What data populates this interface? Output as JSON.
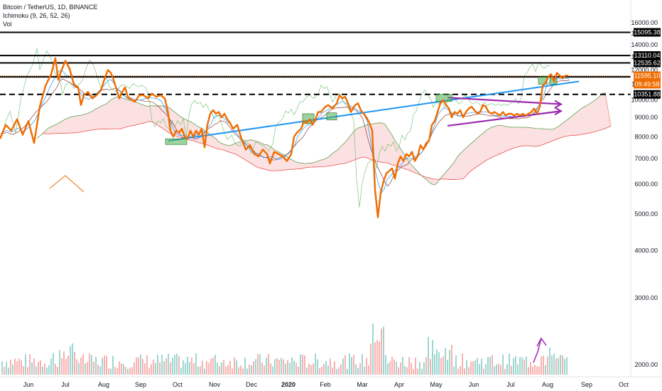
{
  "legend": {
    "symbol": "Bitcoin / TetherUS, 1D, BINANCE",
    "indicator1": "Ichimoku (9, 26, 52, 26)",
    "indicator2": "Vol"
  },
  "colors": {
    "price": "#ef6c00",
    "trendline": "#2196f3",
    "channel": "#9c27b0",
    "arrow": "#9c27b0",
    "cloud_red": "#f8c8c8",
    "cloud_green": "#c8e6c9",
    "lagging": "#66bb6a",
    "box": "#4caf50",
    "vol_up": "#26a69a",
    "vol_down": "#ef5350"
  },
  "chart_data": {
    "type": "line",
    "title": "Bitcoin / TetherUS, 1D, BINANCE",
    "x_ticks": [
      "Jun",
      "Jul",
      "Aug",
      "Sep",
      "Oct",
      "Nov",
      "Dec",
      "2020",
      "Feb",
      "Mar",
      "Apr",
      "May",
      "Jun",
      "Jul",
      "Aug",
      "Sep",
      "Oct"
    ],
    "y_ticks": [
      2000,
      3000,
      4000,
      5000,
      6000,
      7000,
      8000,
      9000,
      10000,
      11000,
      12000,
      13000,
      14000,
      15000,
      16000
    ],
    "y_scale": "log",
    "horizontal_levels": [
      {
        "value": 15095.38,
        "label": "15095.38",
        "style": "solid"
      },
      {
        "value": 13110.04,
        "label": "13110.04",
        "style": "solid"
      },
      {
        "value": 12535.62,
        "label": "12535.62",
        "style": "solid"
      },
      {
        "value": 11510.92,
        "label": "11510.92",
        "style": "solid"
      },
      {
        "value": 10351.88,
        "label": "10351.88",
        "style": "dashed"
      }
    ],
    "last_price": {
      "value": 11595.1,
      "label": "11595.10",
      "countdown": "09:49:58"
    },
    "series": [
      {
        "values": [
          [
            0,
            7900
          ],
          [
            8,
            8600
          ],
          [
            16,
            8300
          ],
          [
            24,
            8900
          ],
          [
            32,
            8100
          ],
          [
            40,
            8800
          ],
          [
            48,
            7700
          ],
          [
            56,
            9600
          ],
          [
            64,
            10900
          ],
          [
            72,
            11700
          ],
          [
            78,
            12900
          ],
          [
            82,
            11300
          ],
          [
            86,
            11900
          ],
          [
            92,
            12700
          ],
          [
            98,
            12100
          ],
          [
            104,
            11000
          ],
          [
            110,
            10800
          ],
          [
            114,
            9700
          ],
          [
            118,
            10300
          ],
          [
            124,
            10500
          ],
          [
            130,
            10100
          ],
          [
            136,
            10300
          ],
          [
            142,
            10600
          ],
          [
            148,
            11500
          ],
          [
            152,
            12000
          ],
          [
            156,
            11800
          ],
          [
            160,
            11300
          ],
          [
            164,
            10700
          ],
          [
            168,
            10100
          ],
          [
            172,
            10500
          ],
          [
            176,
            10800
          ],
          [
            180,
            10200
          ],
          [
            186,
            10000
          ],
          [
            190,
            9900
          ],
          [
            196,
            10300
          ],
          [
            202,
            10300
          ],
          [
            208,
            10100
          ],
          [
            214,
            10400
          ],
          [
            220,
            10200
          ],
          [
            226,
            10300
          ],
          [
            232,
            10100
          ],
          [
            236,
            9400
          ],
          [
            240,
            8300
          ],
          [
            244,
            8000
          ],
          [
            248,
            8300
          ],
          [
            252,
            8200
          ],
          [
            256,
            8400
          ],
          [
            260,
            8000
          ],
          [
            264,
            7900
          ],
          [
            268,
            8300
          ],
          [
            272,
            8000
          ],
          [
            276,
            8300
          ],
          [
            280,
            8100
          ],
          [
            284,
            8400
          ],
          [
            288,
            7500
          ],
          [
            292,
            8600
          ],
          [
            296,
            9200
          ],
          [
            300,
            9400
          ],
          [
            304,
            9200
          ],
          [
            308,
            9300
          ],
          [
            312,
            9000
          ],
          [
            316,
            9200
          ],
          [
            320,
            8900
          ],
          [
            324,
            8700
          ],
          [
            328,
            8400
          ],
          [
            334,
            8600
          ],
          [
            340,
            7900
          ],
          [
            346,
            7400
          ],
          [
            352,
            7600
          ],
          [
            358,
            7200
          ],
          [
            364,
            7100
          ],
          [
            370,
            7400
          ],
          [
            376,
            7200
          ],
          [
            380,
            6800
          ],
          [
            386,
            7300
          ],
          [
            392,
            7200
          ],
          [
            398,
            7100
          ],
          [
            404,
            6900
          ],
          [
            410,
            7200
          ],
          [
            414,
            8000
          ],
          [
            418,
            8200
          ],
          [
            424,
            8400
          ],
          [
            428,
            8800
          ],
          [
            432,
            8700
          ],
          [
            436,
            8900
          ],
          [
            440,
            8600
          ],
          [
            444,
            8900
          ],
          [
            448,
            9300
          ],
          [
            452,
            9300
          ],
          [
            458,
            9600
          ],
          [
            462,
            9700
          ],
          [
            468,
            9500
          ],
          [
            474,
            9800
          ],
          [
            478,
            10300
          ],
          [
            482,
            10100
          ],
          [
            486,
            10200
          ],
          [
            490,
            9800
          ],
          [
            494,
            9300
          ],
          [
            500,
            9700
          ],
          [
            504,
            9800
          ],
          [
            508,
            9400
          ],
          [
            512,
            9200
          ],
          [
            516,
            9000
          ],
          [
            520,
            8700
          ],
          [
            524,
            8300
          ],
          [
            528,
            5800
          ],
          [
            532,
            4900
          ],
          [
            536,
            5700
          ],
          [
            540,
            6100
          ],
          [
            544,
            6400
          ],
          [
            548,
            6500
          ],
          [
            552,
            6600
          ],
          [
            556,
            6200
          ],
          [
            560,
            6800
          ],
          [
            564,
            7100
          ],
          [
            568,
            6900
          ],
          [
            572,
            7200
          ],
          [
            576,
            7100
          ],
          [
            580,
            7300
          ],
          [
            584,
            6900
          ],
          [
            588,
            7100
          ],
          [
            592,
            7600
          ],
          [
            596,
            7400
          ],
          [
            600,
            7700
          ],
          [
            604,
            7800
          ],
          [
            608,
            8600
          ],
          [
            612,
            8800
          ],
          [
            616,
            9300
          ],
          [
            620,
            9800
          ],
          [
            624,
            10000
          ],
          [
            628,
            9700
          ],
          [
            632,
            9500
          ],
          [
            636,
            9000
          ],
          [
            640,
            9300
          ],
          [
            644,
            9200
          ],
          [
            648,
            9400
          ],
          [
            652,
            9000
          ],
          [
            656,
            9300
          ],
          [
            660,
            9500
          ],
          [
            664,
            9600
          ],
          [
            668,
            9400
          ],
          [
            672,
            9200
          ],
          [
            676,
            9300
          ],
          [
            680,
            9700
          ],
          [
            684,
            9600
          ],
          [
            688,
            9300
          ],
          [
            692,
            9200
          ],
          [
            696,
            9300
          ],
          [
            700,
            9200
          ],
          [
            704,
            9100
          ],
          [
            708,
            9300
          ],
          [
            712,
            9100
          ],
          [
            716,
            9200
          ],
          [
            720,
            9200
          ],
          [
            724,
            9100
          ],
          [
            728,
            9200
          ],
          [
            732,
            9100
          ],
          [
            736,
            9200
          ],
          [
            740,
            9100
          ],
          [
            744,
            9200
          ],
          [
            748,
            9300
          ],
          [
            752,
            9500
          ],
          [
            756,
            9200
          ],
          [
            760,
            9600
          ],
          [
            764,
            10900
          ],
          [
            768,
            11100
          ],
          [
            772,
            11500
          ],
          [
            776,
            11700
          ],
          [
            780,
            11200
          ],
          [
            784,
            11800
          ],
          [
            788,
            11600
          ],
          [
            792,
            11400
          ],
          [
            796,
            11600
          ],
          [
            800,
            11600
          ]
        ]
      }
    ]
  }
}
